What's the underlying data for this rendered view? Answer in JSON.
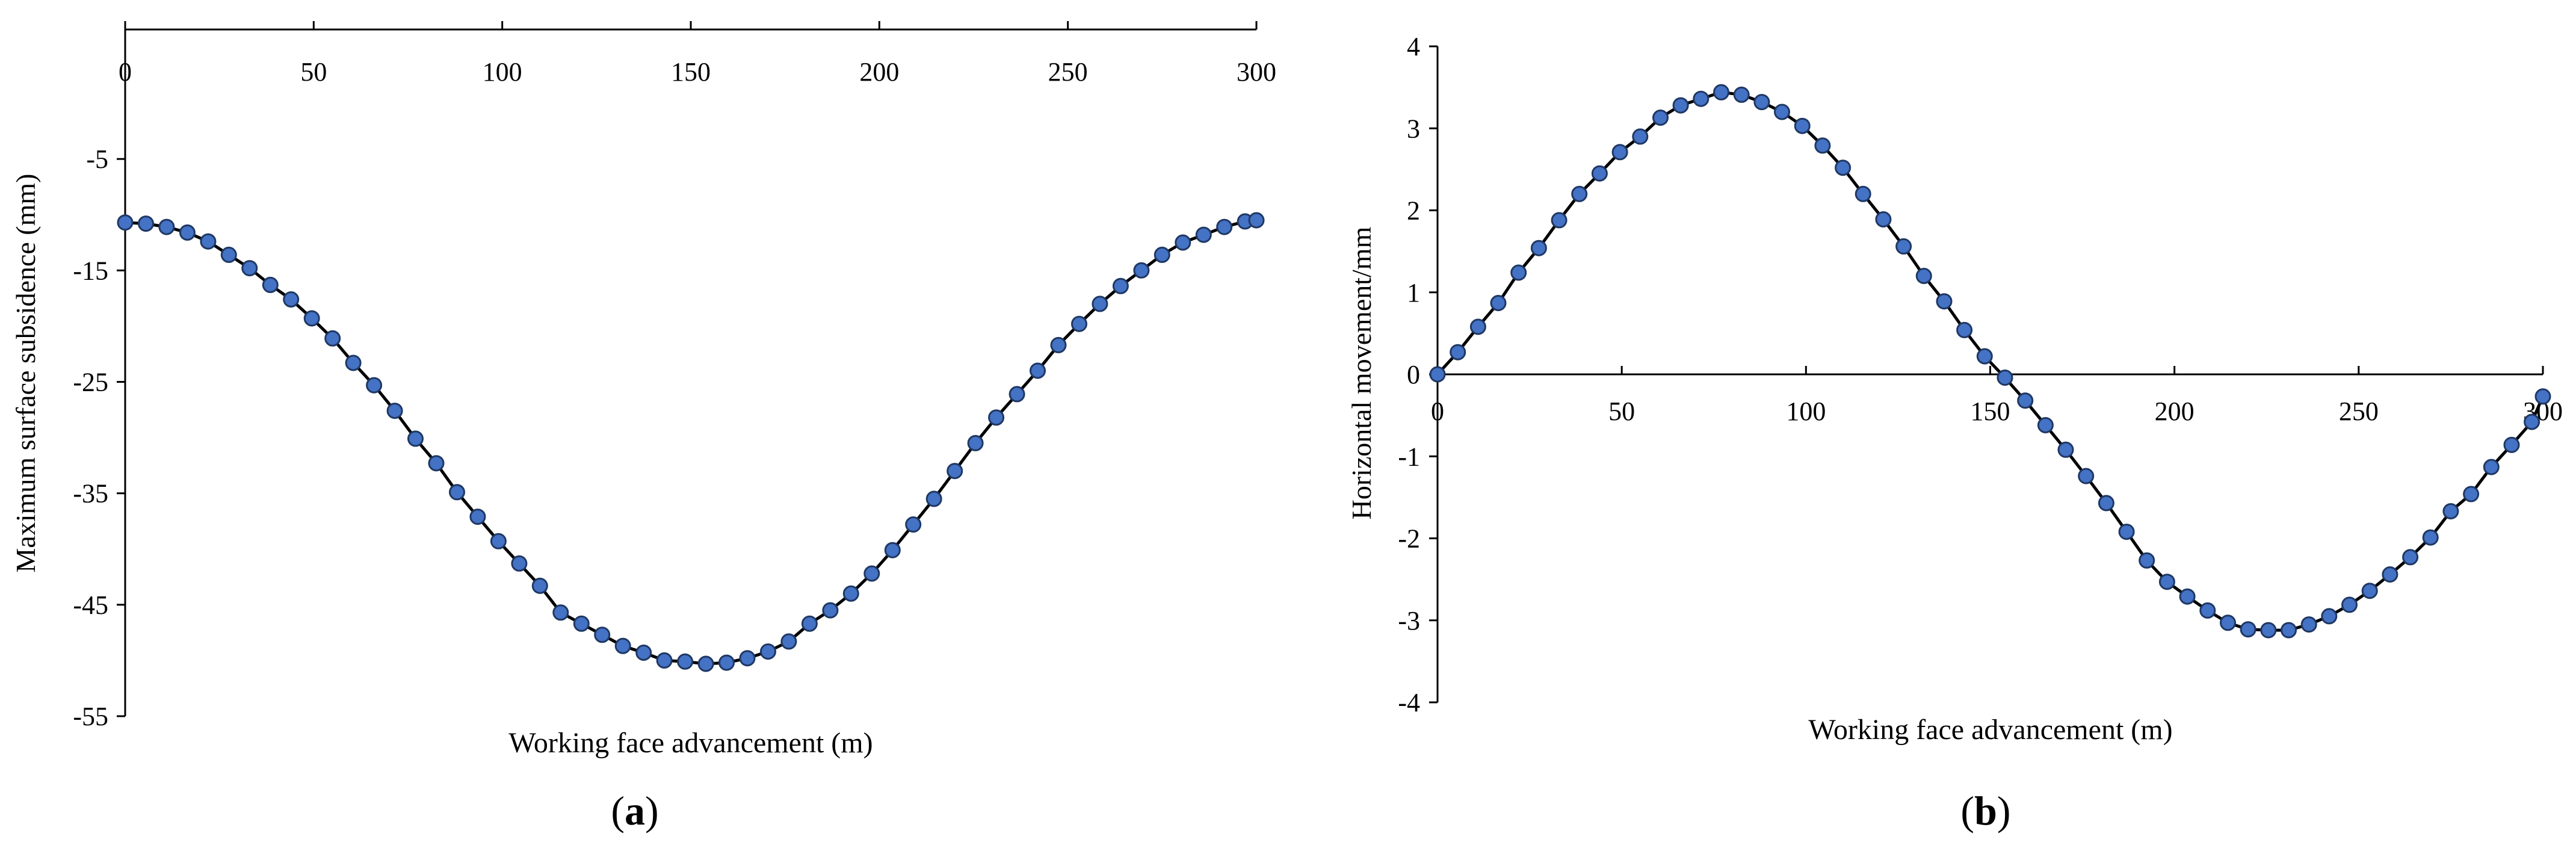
{
  "chart_data": [
    {
      "type": "line",
      "panel_label": "a",
      "title": "",
      "xlabel": "Working face advancement (m)",
      "ylabel": "Maximum surface subsidence (mm)",
      "xlim": [
        0,
        300
      ],
      "ylim": [
        -55,
        5
      ],
      "xticks": [
        0,
        50,
        100,
        150,
        200,
        250,
        300
      ],
      "yticks": [
        -5,
        -15,
        -25,
        -35,
        -45,
        -55
      ],
      "grid": false,
      "legend": "none",
      "series_color": "#4472C4",
      "marker_edge": "#1F3864",
      "line_color": "#000000",
      "series": [
        {
          "name": "subsidence",
          "x": [
            0,
            5.5,
            11,
            16.5,
            22,
            27.5,
            33,
            38.5,
            44,
            49.5,
            55,
            60.5,
            66,
            71.5,
            77,
            82.5,
            88,
            93.5,
            99,
            104.5,
            110,
            115.5,
            121,
            126.5,
            132,
            137.5,
            143,
            148.5,
            154,
            159.5,
            165,
            170.5,
            176,
            181.5,
            187,
            192.5,
            198,
            203.5,
            209,
            214.5,
            220,
            225.5,
            231,
            236.5,
            242,
            247.5,
            253,
            258.5,
            264,
            269.5,
            275,
            280.5,
            286,
            291.5,
            297,
            300
          ],
          "values": [
            -10.7,
            -10.8,
            -11.1,
            -11.6,
            -12.4,
            -13.6,
            -14.8,
            -16.3,
            -17.6,
            -19.3,
            -21.1,
            -23.3,
            -25.3,
            -27.6,
            -30.1,
            -32.3,
            -34.9,
            -37.1,
            -39.3,
            -41.3,
            -43.3,
            -45.7,
            -46.7,
            -47.7,
            -48.7,
            -49.3,
            -50.0,
            -50.1,
            -50.3,
            -50.2,
            -49.8,
            -49.2,
            -48.3,
            -46.7,
            -45.5,
            -44.0,
            -42.2,
            -40.1,
            -37.8,
            -35.5,
            -33.0,
            -30.5,
            -28.2,
            -26.1,
            -24.0,
            -21.7,
            -19.8,
            -18.0,
            -16.4,
            -15.0,
            -13.6,
            -12.5,
            -11.8,
            -11.1,
            -10.6,
            -10.5
          ]
        }
      ]
    },
    {
      "type": "line",
      "panel_label": "b",
      "title": "",
      "xlabel": "Working face advancement (m)",
      "ylabel": "Horizontal movement/mm",
      "xlim": [
        0,
        300
      ],
      "ylim": [
        -4,
        4
      ],
      "xticks": [
        0,
        50,
        100,
        150,
        200,
        250,
        300
      ],
      "yticks": [
        4,
        3,
        2,
        1,
        0,
        -1,
        -2,
        -3,
        -4
      ],
      "grid": false,
      "legend": "none",
      "series_color": "#4472C4",
      "marker_edge": "#1F3864",
      "line_color": "#000000",
      "series": [
        {
          "name": "horizontal movement",
          "x": [
            0,
            5.5,
            11,
            16.5,
            22,
            27.5,
            33,
            38.5,
            44,
            49.5,
            55,
            60.5,
            66,
            71.5,
            77,
            82.5,
            88,
            93.5,
            99,
            104.5,
            110,
            115.5,
            121,
            126.5,
            132,
            137.5,
            143,
            148.5,
            154,
            159.5,
            165,
            170.5,
            176,
            181.5,
            187,
            192.5,
            198,
            203.5,
            209,
            214.5,
            220,
            225.5,
            231,
            236.5,
            242,
            247.5,
            253,
            258.5,
            264,
            269.5,
            275,
            280.5,
            286,
            291.5,
            297,
            300
          ],
          "values": [
            0,
            0.27,
            0.58,
            0.87,
            1.24,
            1.54,
            1.88,
            2.2,
            2.45,
            2.71,
            2.9,
            3.13,
            3.28,
            3.36,
            3.44,
            3.41,
            3.32,
            3.2,
            3.03,
            2.79,
            2.52,
            2.2,
            1.89,
            1.56,
            1.2,
            0.89,
            0.54,
            0.22,
            -0.04,
            -0.32,
            -0.62,
            -0.92,
            -1.24,
            -1.57,
            -1.92,
            -2.27,
            -2.53,
            -2.71,
            -2.88,
            -3.03,
            -3.11,
            -3.12,
            -3.12,
            -3.05,
            -2.95,
            -2.81,
            -2.64,
            -2.44,
            -2.23,
            -1.99,
            -1.67,
            -1.46,
            -1.13,
            -0.86,
            -0.58,
            -0.27
          ]
        }
      ]
    }
  ]
}
